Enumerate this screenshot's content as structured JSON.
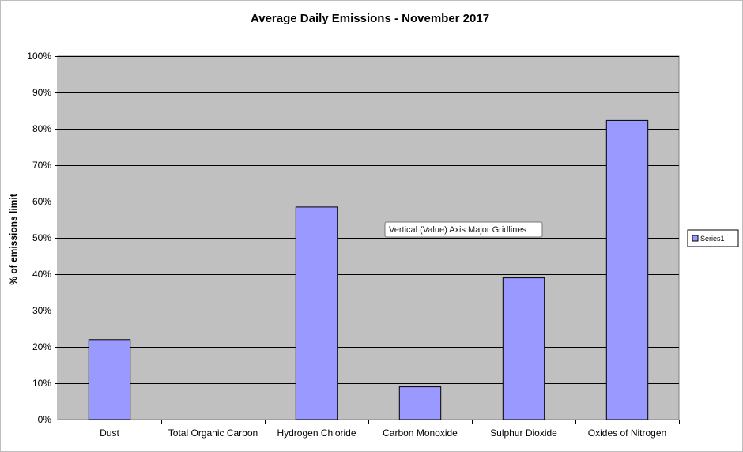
{
  "chart_data": {
    "type": "bar",
    "title": "Average Daily Emissions - November 2017",
    "xlabel": "",
    "ylabel": "% of emissions limit",
    "categories": [
      "Dust",
      "Total Organic Carbon",
      "Hydrogen Chloride",
      "Carbon Monoxide",
      "Sulphur Dioxide",
      "Oxides of Nitrogen"
    ],
    "series": [
      {
        "name": "Series1",
        "values": [
          22,
          0,
          58.5,
          9,
          39,
          82.3
        ]
      }
    ],
    "ylim": [
      0,
      100
    ],
    "yticks": [
      0,
      10,
      20,
      30,
      40,
      50,
      60,
      70,
      80,
      90,
      100
    ],
    "ytick_labels": [
      "0%",
      "10%",
      "20%",
      "30%",
      "40%",
      "50%",
      "60%",
      "70%",
      "80%",
      "90%",
      "100%"
    ],
    "grid": true,
    "legend": "right",
    "colors": {
      "plot_background": "#c0c0c0",
      "bar_fill": "#9999ff",
      "bar_stroke": "#000000",
      "gridline": "#000000"
    }
  },
  "tooltip": {
    "text": "Vertical (Value) Axis Major Gridlines"
  }
}
